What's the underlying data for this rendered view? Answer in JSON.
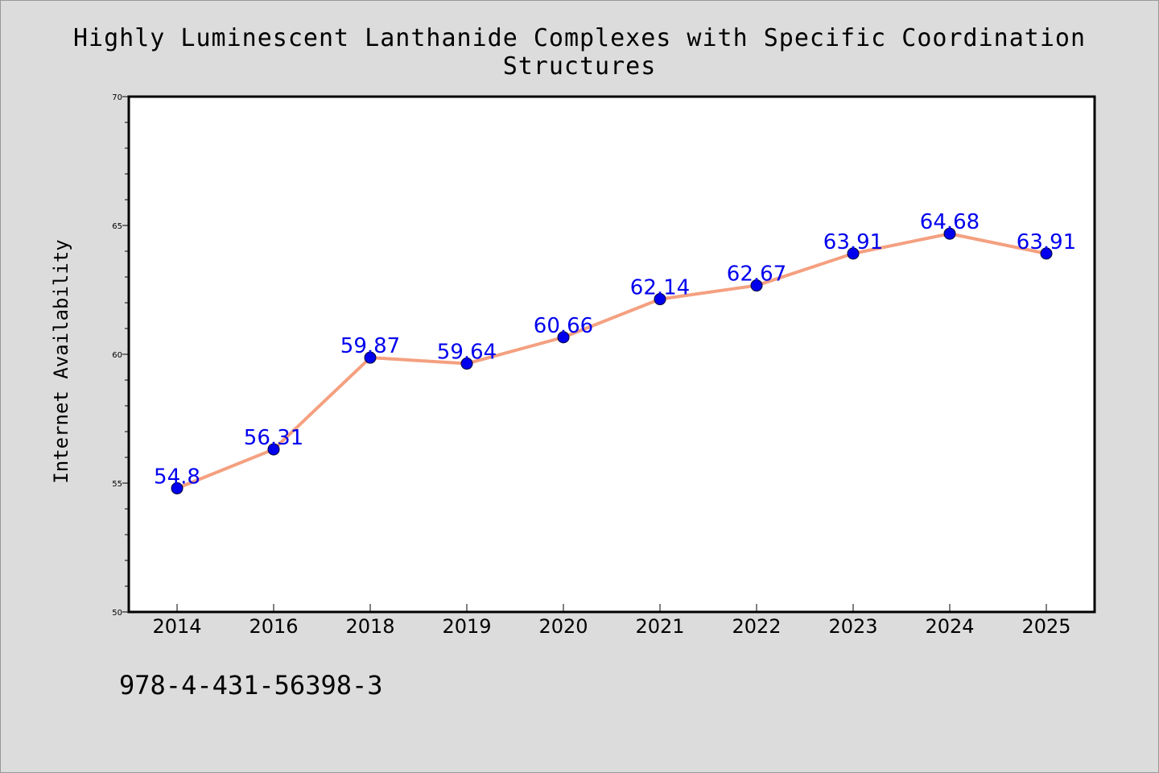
{
  "colors": {
    "background": "#dcdcdc",
    "plot_background": "#ffffff",
    "line": "#f4a080",
    "marker": "#0000ee",
    "label": "#0000ee",
    "axis": "#000000"
  },
  "footer": {
    "code": "978-4-431-56398-3"
  },
  "chart_data": {
    "type": "line",
    "title": "Highly Luminescent Lanthanide Complexes with Specific Coordination Structures",
    "xlabel": "",
    "ylabel": "Internet Availability",
    "categories": [
      "2014",
      "2016",
      "2018",
      "2019",
      "2020",
      "2021",
      "2022",
      "2023",
      "2024",
      "2025"
    ],
    "series": [
      {
        "values": [
          54.8,
          56.31,
          59.87,
          59.64,
          60.66,
          62.14,
          62.67,
          63.91,
          64.68,
          63.91
        ],
        "labels": [
          "54.8",
          "56.31",
          "59.87",
          "59.64",
          "60.66",
          "62.14",
          "62.67",
          "63.91",
          "64.68",
          "63.91"
        ]
      }
    ],
    "ylim": [
      50,
      70
    ],
    "yticks": [
      50,
      55,
      60,
      65,
      70
    ],
    "grid": false,
    "legend": "none"
  }
}
